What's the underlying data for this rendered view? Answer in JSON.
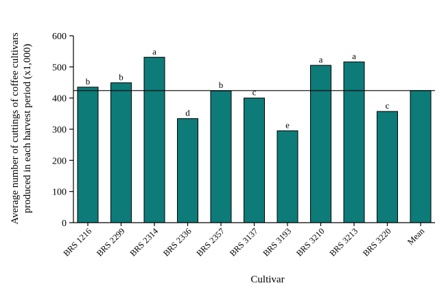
{
  "chart_data": {
    "type": "bar",
    "categories": [
      "BRS 1216",
      "BRS 2299",
      "BRS 2314",
      "BRS 2336",
      "BRS 2357",
      "BRS 3137",
      "BRS 3193",
      "BRS 3210",
      "BRS 3213",
      "BRS 3220",
      "Mean"
    ],
    "values": [
      435,
      449,
      531,
      334,
      423,
      400,
      295,
      505,
      516,
      357,
      424
    ],
    "data_labels": [
      "b",
      "b",
      "a",
      "d",
      "b",
      "c",
      "e",
      "a",
      "a",
      "c",
      ""
    ],
    "reference_line": 424,
    "xlabel": "Cultivar",
    "ylabel_lines": [
      "Average number of cuttings of coffee cultivars",
      "produced in each harvest period (x1,000)"
    ],
    "ylim": [
      0,
      600
    ],
    "yticks": [
      0,
      100,
      200,
      300,
      400,
      500,
      600
    ],
    "grid": false,
    "bar_color": "#0d7b78"
  }
}
